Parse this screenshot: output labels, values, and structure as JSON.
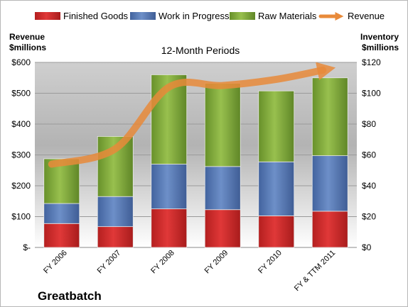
{
  "chart_data": {
    "type": "bar",
    "title": "12-Month Periods",
    "company": "Greatbatch",
    "categories": [
      "FY 2006",
      "FY 2007",
      "FY 2008",
      "FY 2009",
      "FY 2010",
      "FY & TTM 2011"
    ],
    "stack_series": [
      {
        "name": "Finished Goods",
        "values": [
          15.5,
          13.5,
          25.0,
          24.5,
          20.5,
          23.5
        ]
      },
      {
        "name": "Work in Progress",
        "values": [
          13.0,
          19.5,
          29.0,
          28.0,
          35.0,
          36.0
        ]
      },
      {
        "name": "Raw Materials",
        "values": [
          29.0,
          39.0,
          58.0,
          54.0,
          46.0,
          50.5
        ]
      }
    ],
    "line_series": {
      "name": "Revenue",
      "values": [
        270,
        320,
        520,
        525,
        545,
        575
      ]
    },
    "y_left": {
      "label_line1": "Revenue",
      "label_line2": "$millions",
      "range": [
        0,
        600
      ],
      "ticks": [
        "$-",
        "$100",
        "$200",
        "$300",
        "$400",
        "$500",
        "$600"
      ]
    },
    "y_right": {
      "label_line1": "Inventory",
      "label_line2": "$millions",
      "range": [
        0,
        120
      ],
      "ticks": [
        "$0",
        "$20",
        "$40",
        "$60",
        "$80",
        "$100",
        "$120"
      ]
    },
    "legend_position": "top",
    "colors": {
      "finished_goods": "#cf2a2a",
      "work_in_progress": "#5577b0",
      "raw_materials": "#7da53a",
      "revenue": "#e88a3a"
    }
  }
}
